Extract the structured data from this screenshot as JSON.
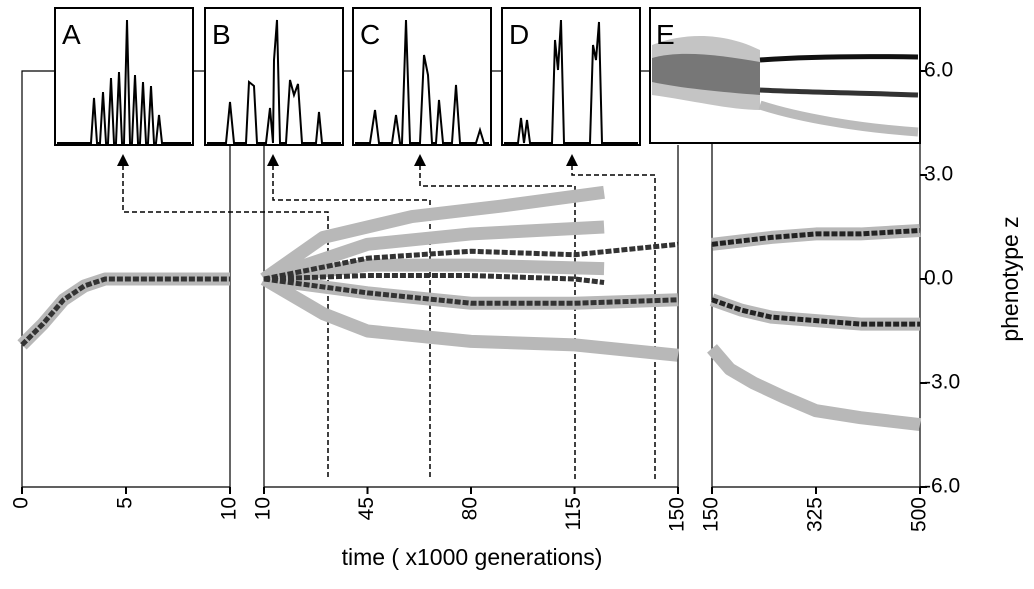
{
  "chart_data": [
    {
      "type": "line",
      "xlim": [
        0,
        10
      ],
      "xticks": [
        0,
        5,
        10
      ],
      "ylim": [
        -6,
        6
      ],
      "series": [
        {
          "color": "#b8b8b8",
          "x": [
            0,
            1,
            2,
            3,
            4,
            5,
            6,
            7,
            8,
            9,
            10
          ],
          "values": [
            -1.9,
            -1.3,
            -0.6,
            -0.2,
            0,
            0,
            0,
            0,
            0,
            0,
            0
          ]
        },
        {
          "color": "#333333",
          "x": [
            0,
            1,
            2,
            3,
            4,
            5,
            6,
            7,
            8,
            9,
            10
          ],
          "values": [
            -1.9,
            -1.3,
            -0.6,
            -0.2,
            0,
            0,
            0,
            0,
            0,
            0,
            0
          ]
        }
      ]
    },
    {
      "type": "line",
      "xlim": [
        10,
        150
      ],
      "xticks": [
        10,
        45,
        80,
        115,
        150
      ],
      "ylim": [
        -6,
        6
      ],
      "xlabel": "time ( x1000 generations)",
      "series": [
        {
          "color": "#b8b8b8",
          "x": [
            10,
            30,
            60,
            90,
            125
          ],
          "values": [
            0,
            1.2,
            1.8,
            2.1,
            2.5
          ]
        },
        {
          "color": "#b8b8b8",
          "x": [
            10,
            45,
            80,
            125
          ],
          "values": [
            0,
            1.0,
            1.3,
            1.5
          ]
        },
        {
          "color": "#b8b8b8",
          "x": [
            10,
            45,
            80,
            125
          ],
          "values": [
            0,
            0.4,
            0.4,
            0.3
          ]
        },
        {
          "color": "#b8b8b8",
          "x": [
            10,
            30,
            45,
            80,
            115,
            150
          ],
          "values": [
            0,
            -1.0,
            -1.5,
            -1.8,
            -1.9,
            -2.2
          ]
        },
        {
          "color": "#b8b8b8",
          "x": [
            10,
            45,
            80,
            115,
            150
          ],
          "values": [
            0,
            -0.4,
            -0.7,
            -0.7,
            -0.6
          ]
        },
        {
          "color": "#333333",
          "x": [
            10,
            45,
            80,
            115,
            150
          ],
          "values": [
            0,
            0.6,
            0.8,
            0.7,
            1.0
          ]
        },
        {
          "color": "#333333",
          "x": [
            10,
            45,
            80,
            115,
            125
          ],
          "values": [
            0,
            0.1,
            0.1,
            0,
            -0.1
          ]
        },
        {
          "color": "#333333",
          "x": [
            10,
            45,
            80,
            115,
            150
          ],
          "values": [
            0,
            -0.4,
            -0.7,
            -0.7,
            -0.6
          ]
        }
      ]
    },
    {
      "type": "line",
      "xlim": [
        150,
        500
      ],
      "xticks": [
        150,
        325,
        500
      ],
      "ylim": [
        -6,
        6
      ],
      "ylabel": "phenotype z",
      "yticks": [
        {
          "value": 6,
          "label": "6.0"
        },
        {
          "value": 3,
          "label": "3.0"
        },
        {
          "value": 0,
          "label": "0.0"
        },
        {
          "value": -3,
          "label": "-3.0"
        },
        {
          "value": -6,
          "label": "-6.0"
        }
      ],
      "series": [
        {
          "color": "#b8b8b8",
          "x": [
            150,
            200,
            250,
            325,
            400,
            500
          ],
          "values": [
            1.0,
            1.1,
            1.2,
            1.3,
            1.3,
            1.4
          ]
        },
        {
          "color": "#b8b8b8",
          "x": [
            150,
            200,
            250,
            325,
            400,
            500
          ],
          "values": [
            -0.6,
            -0.9,
            -1.1,
            -1.2,
            -1.3,
            -1.3
          ]
        },
        {
          "color": "#b8b8b8",
          "x": [
            150,
            180,
            220,
            270,
            325,
            400,
            500
          ],
          "values": [
            -2.0,
            -2.6,
            -3.0,
            -3.4,
            -3.8,
            -4.0,
            -4.2
          ]
        },
        {
          "color": "#222222",
          "x": [
            150,
            200,
            250,
            325,
            400,
            500
          ],
          "values": [
            1.0,
            1.1,
            1.2,
            1.3,
            1.3,
            1.4
          ]
        },
        {
          "color": "#222222",
          "x": [
            150,
            200,
            250,
            325,
            400,
            500
          ],
          "values": [
            -0.6,
            -0.9,
            -1.1,
            -1.2,
            -1.3,
            -1.3
          ]
        }
      ]
    }
  ],
  "insets": [
    "A",
    "B",
    "C",
    "D",
    "E"
  ]
}
